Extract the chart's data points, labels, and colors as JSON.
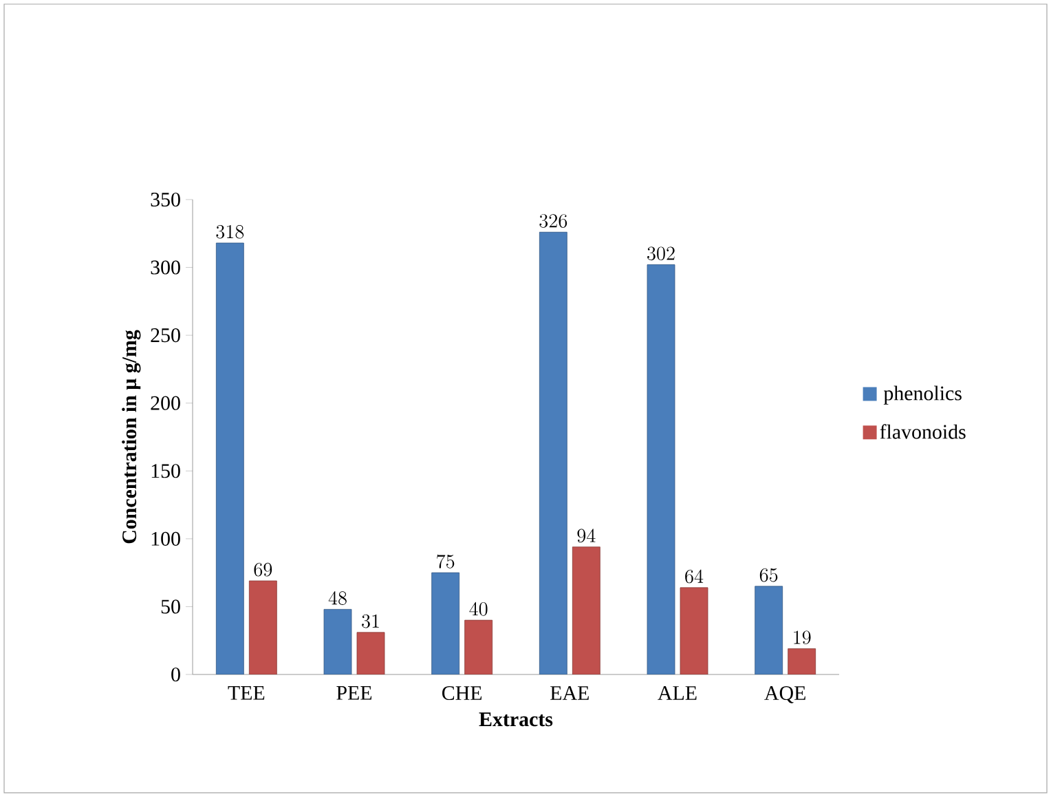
{
  "chart_data": {
    "type": "bar",
    "xlabel": "Extracts",
    "ylabel": "Concentration in μ g/mg",
    "categories": [
      "TEE",
      "PEE",
      "CHE",
      "EAE",
      "ALE",
      "AQE"
    ],
    "series": [
      {
        "name": "phenolics",
        "color": "#4a7ebb",
        "values": [
          318,
          48,
          75,
          326,
          302,
          65
        ]
      },
      {
        "name": "flavonoids",
        "color": "#c0504d",
        "values": [
          69,
          31,
          40,
          94,
          64,
          19
        ]
      }
    ],
    "ylim": [
      0,
      350
    ],
    "yticks": [
      0,
      50,
      100,
      150,
      200,
      250,
      300,
      350
    ],
    "data_labels": true,
    "legend": "right"
  }
}
